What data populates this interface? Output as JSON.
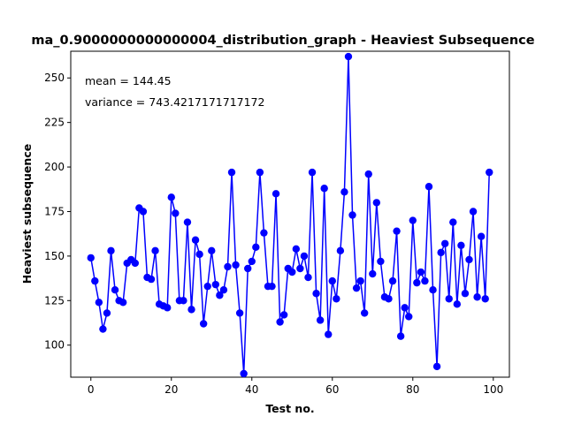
{
  "chart_data": {
    "type": "line",
    "title": "ma_0.9000000000000004_distribution_graph - Heaviest Subsequence",
    "xlabel": "Test no.",
    "ylabel": "Heaviest subsequence",
    "xlim": [
      -5,
      104
    ],
    "ylim": [
      82,
      265
    ],
    "xticks": [
      0,
      20,
      40,
      60,
      80,
      100
    ],
    "yticks": [
      100,
      125,
      150,
      175,
      200,
      225,
      250
    ],
    "grid": false,
    "color": "#0000ff",
    "marker": "circle",
    "annotations": [
      "mean = 144.45",
      "variance = 743.4217171717172"
    ],
    "series": [
      {
        "x": [
          0,
          1,
          2,
          3,
          4,
          5,
          6,
          7,
          8,
          9,
          10,
          11,
          12,
          13,
          14,
          15,
          16,
          17,
          18,
          19,
          20,
          21,
          22,
          23,
          24,
          25,
          26,
          27,
          28,
          29,
          30,
          31,
          32,
          33,
          34,
          35,
          36,
          37,
          38,
          39,
          40,
          41,
          42,
          43,
          44,
          45,
          46,
          47,
          48,
          49,
          50,
          51,
          52,
          53,
          54,
          55,
          56,
          57,
          58,
          59,
          60,
          61,
          62,
          63,
          64,
          65,
          66,
          67,
          68,
          69,
          70,
          71,
          72,
          73,
          74,
          75,
          76,
          77,
          78,
          79,
          80,
          81,
          82,
          83,
          84,
          85,
          86,
          87,
          88,
          89,
          90,
          91,
          92,
          93,
          94,
          95,
          96,
          97,
          98,
          99
        ],
        "y": [
          149,
          136,
          124,
          109,
          118,
          153,
          131,
          125,
          124,
          146,
          148,
          146,
          177,
          175,
          138,
          137,
          153,
          123,
          122,
          121,
          183,
          174,
          125,
          125,
          169,
          120,
          159,
          151,
          112,
          133,
          153,
          134,
          128,
          131,
          144,
          197,
          145,
          118,
          84,
          143,
          147,
          155,
          197,
          163,
          133,
          133,
          185,
          113,
          117,
          143,
          141,
          154,
          143,
          150,
          138,
          197,
          129,
          114,
          188,
          106,
          136,
          126,
          153,
          186,
          262,
          173,
          132,
          136,
          118,
          196,
          140,
          180,
          147,
          127,
          126,
          136,
          164,
          105,
          121,
          116,
          170,
          135,
          141,
          136,
          189,
          131,
          88,
          152,
          157,
          126,
          169,
          123,
          156,
          129,
          148,
          175,
          127,
          161,
          126,
          197
        ]
      }
    ]
  }
}
